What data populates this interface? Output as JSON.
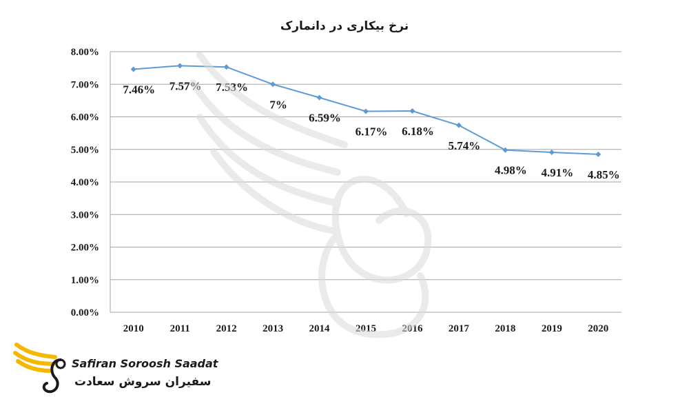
{
  "chart_data": {
    "type": "line",
    "title": "نرخ بیکاری در دانمارک",
    "xlabel": "",
    "ylabel": "",
    "categories": [
      "2010",
      "2011",
      "2012",
      "2013",
      "2014",
      "2015",
      "2016",
      "2017",
      "2018",
      "2019",
      "2020"
    ],
    "series": [
      {
        "values": [
          7.46,
          7.57,
          7.53,
          7.0,
          6.59,
          6.17,
          6.18,
          5.74,
          4.98,
          4.91,
          4.85
        ],
        "labels": [
          "7.46%",
          "7.57%",
          "7.53%",
          "7%",
          "6.59%",
          "6.17%",
          "6.18%",
          "5.74%",
          "4.98%",
          "4.91%",
          "4.85%"
        ],
        "color": "#5b9bd5"
      }
    ],
    "ylim": [
      0,
      8
    ],
    "yticks": [
      "0.00%",
      "1.00%",
      "2.00%",
      "3.00%",
      "4.00%",
      "5.00%",
      "6.00%",
      "7.00%",
      "8.00%"
    ],
    "grid": true,
    "legend": "none",
    "gridline_color": "#a6a6a6"
  },
  "logo": {
    "name_en": "Safiran Soroosh Saadat",
    "name_fa": "سفیران سروش سعادت",
    "accent_color": "#f5b800"
  }
}
